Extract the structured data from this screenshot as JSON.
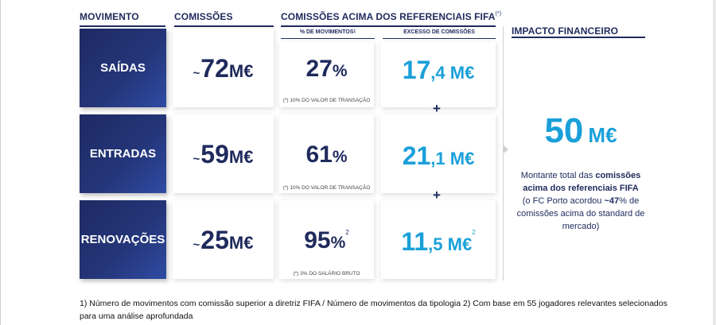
{
  "headers": {
    "movimento": "MOVIMENTO",
    "comissoes": "COMISSÕES",
    "comissoes_fifa": "COMISSÕES ACIMA DOS REFERENCIAIS FIFA",
    "comissoes_fifa_sup": "(*)",
    "impacto": "IMPACTO FINANCEIRO",
    "pct_movimentos": "% DE MOVIMENTOS",
    "pct_movimentos_sup": "1",
    "excesso": "EXCESSO DE COMISSÕES"
  },
  "rows": [
    {
      "label": "SAÍDAS",
      "tilde": "~",
      "commission_num": "72",
      "commission_unit": "M€",
      "pct_num": "27",
      "pct_sign": "%",
      "pct_sup": "",
      "note": "(*) 10% DO VALOR DE TRANSAÇÃO",
      "excess_int": "17",
      "excess_dec": ",4 M€",
      "excess_sup": ""
    },
    {
      "label": "ENTRADAS",
      "tilde": "~",
      "commission_num": "59",
      "commission_unit": "M€",
      "pct_num": "61",
      "pct_sign": "%",
      "pct_sup": "",
      "note": "(*) 10% DO VALOR DE TRANSAÇÃO",
      "excess_int": "21",
      "excess_dec": ",1 M€",
      "excess_sup": ""
    },
    {
      "label": "RENOVAÇÕES",
      "tilde": "~",
      "commission_num": "25",
      "commission_unit": "M€",
      "pct_num": "95",
      "pct_sign": "%",
      "pct_sup": "2",
      "note": "(*) 3% DO SALÁRIO BRUTO",
      "excess_int": "11",
      "excess_dec": ",5 M€",
      "excess_sup": "2"
    }
  ],
  "plus": "+",
  "impact": {
    "value": "50",
    "unit": "M€",
    "text_1": "Montante total das ",
    "text_2": "comissões acima dos referenciais FIFA",
    "text_3": "(o FC Porto acordou ",
    "text_4": "~47",
    "text_5": "% de comissões acima do standard de mercado)"
  },
  "footnote": "1) Número de movimentos com comissão superior a diretriz FIFA / Número de movimentos da tipologia 2) Com base em 55 jogadores relevantes selecionados para uma análise aprofundada",
  "colors": {
    "navy": "#1f2a5c",
    "cyan": "#1aa0d9",
    "tile_dark": "#1d2a63",
    "tile_light": "#2f4ba3"
  }
}
